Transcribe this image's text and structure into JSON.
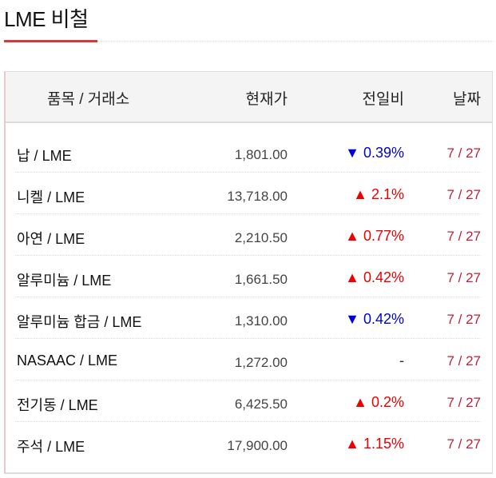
{
  "title": "LME 비철",
  "header": {
    "item": "품목 / 거래소",
    "price": "현재가",
    "change": "전일비",
    "date": "날짜"
  },
  "colors": {
    "up": "#ee0000",
    "down": "#0000dd",
    "date": "#c0203a",
    "accent": "#d03a3a"
  },
  "rows": [
    {
      "name": "납 / LME",
      "price": "1,801.00",
      "change": "▼ 0.39%",
      "dir": "down",
      "date": "7 / 27"
    },
    {
      "name": "니켈 / LME",
      "price": "13,718.00",
      "change": "▲ 2.1%",
      "dir": "up",
      "date": "7 / 27"
    },
    {
      "name": "아연 / LME",
      "price": "2,210.50",
      "change": "▲ 0.77%",
      "dir": "up",
      "date": "7 / 27"
    },
    {
      "name": "알루미늄 / LME",
      "price": "1,661.50",
      "change": "▲ 0.42%",
      "dir": "up",
      "date": "7 / 27"
    },
    {
      "name": "알루미늄 합금 / LME",
      "price": "1,310.00",
      "change": "▼ 0.42%",
      "dir": "down",
      "date": "7 / 27"
    },
    {
      "name": "NASAAC / LME",
      "price": "1,272.00",
      "change": "-",
      "dir": "flat",
      "date": "7 / 27"
    },
    {
      "name": "전기동 / LME",
      "price": "6,425.50",
      "change": "▲ 0.2%",
      "dir": "up",
      "date": "7 / 27"
    },
    {
      "name": "주석 / LME",
      "price": "17,900.00",
      "change": "▲ 1.15%",
      "dir": "up",
      "date": "7 / 27"
    }
  ]
}
